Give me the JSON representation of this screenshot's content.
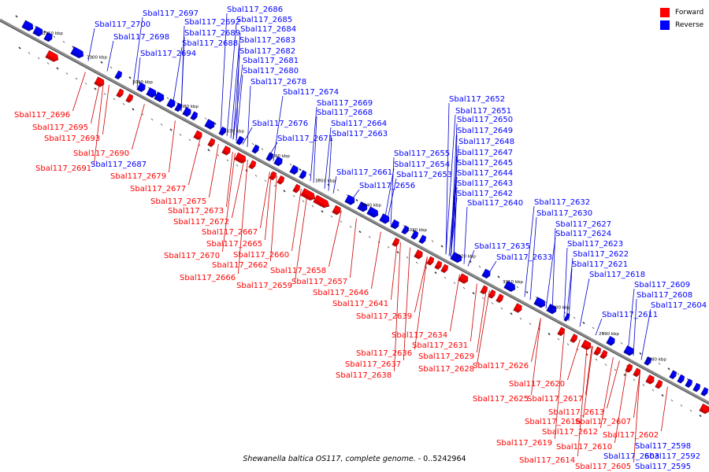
{
  "legend": [
    {
      "label": "Forward",
      "color": "#ff0000"
    },
    {
      "label": "Reverse",
      "color": "#0000ff"
    }
  ],
  "colors": {
    "forward": "#ff0000",
    "reverse": "#0000ff",
    "line_forward": "#cc0000",
    "line_reverse": "#0000cc",
    "axis": "#8c8c8c"
  },
  "caption": {
    "organism": "Shewanella baltica OS117, complete genome.",
    "range": " - 0..5242964"
  },
  "scale_labels": [
    "3110 kbp",
    "3100 kbp",
    "3090 kbp",
    "3080 kbp",
    "3070 kbp",
    "3060 kbp",
    "3050 kbp",
    "3040 kbp",
    "3030 kbp",
    "3020 kbp",
    "3010 kbp",
    "3000 kbp",
    "2990 kbp",
    "2980 kbp"
  ],
  "reverse_genes": [
    "Sbal117_2697",
    "Sbal117_2686",
    "Sbal117_2692",
    "Sbal117_2685",
    "Sbal117_2700",
    "Sbal117_2689",
    "Sbal117_2684",
    "Sbal117_2698",
    "Sbal117_2683",
    "Sbal117_2688",
    "Sbal117_2682",
    "Sbal117_2694",
    "Sbal117_2681",
    "Sbal117_2680",
    "Sbal117_2678",
    "Sbal117_2674",
    "Sbal117_2669",
    "Sbal117_2668",
    "Sbal117_2676",
    "Sbal117_2664",
    "Sbal117_2663",
    "Sbal117_2671",
    "Sbal117_2687",
    "Sbal117_2652",
    "Sbal117_2651",
    "Sbal117_2650",
    "Sbal117_2649",
    "Sbal117_2648",
    "Sbal117_2647",
    "Sbal117_2655",
    "Sbal117_2654",
    "Sbal117_2645",
    "Sbal117_2661",
    "Sbal117_2653",
    "Sbal117_2644",
    "Sbal117_2643",
    "Sbal117_2656",
    "Sbal117_2642",
    "Sbal117_2640",
    "Sbal117_2632",
    "Sbal117_2630",
    "Sbal117_2627",
    "Sbal117_2624",
    "Sbal117_2635",
    "Sbal117_2623",
    "Sbal117_2633",
    "Sbal117_2622",
    "Sbal117_2621",
    "Sbal117_2618",
    "Sbal117_2609",
    "Sbal117_2608",
    "Sbal117_2604",
    "Sbal117_2611",
    "Sbal117_2598",
    "Sbal117_2603",
    "Sbal117_2592",
    "Sbal117_2595"
  ],
  "forward_genes": [
    "Sbal117_2696",
    "Sbal117_2695",
    "Sbal117_2693",
    "Sbal117_2690",
    "Sbal117_2691",
    "Sbal117_2679",
    "Sbal117_2677",
    "Sbal117_2675",
    "Sbal117_2673",
    "Sbal117_2672",
    "Sbal117_2667",
    "Sbal117_2665",
    "Sbal117_2670",
    "Sbal117_2660",
    "Sbal117_2662",
    "Sbal117_2658",
    "Sbal117_2666",
    "Sbal117_2657",
    "Sbal117_2659",
    "Sbal117_2646",
    "Sbal117_2641",
    "Sbal117_2639",
    "Sbal117_2634",
    "Sbal117_2631",
    "Sbal117_2636",
    "Sbal117_2629",
    "Sbal117_2637",
    "Sbal117_2628",
    "Sbal117_2626",
    "Sbal117_2638",
    "Sbal117_2620",
    "Sbal117_2625",
    "Sbal117_2617",
    "Sbal117_2613",
    "Sbal117_2616",
    "Sbal117_2607",
    "Sbal117_2612",
    "Sbal117_2619",
    "Sbal117_2602",
    "Sbal117_2610",
    "Sbal117_2614",
    "Sbal117_2605"
  ]
}
